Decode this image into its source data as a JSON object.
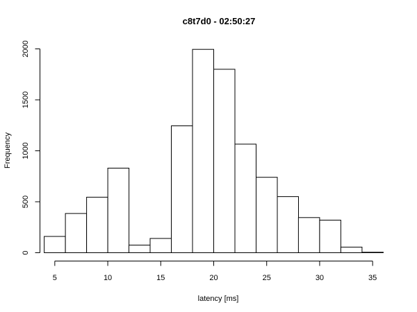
{
  "chart_data": {
    "type": "bar",
    "title": "c8t7d0 - 02:50:27",
    "xlabel": "latency [ms]",
    "ylabel": "Frequency",
    "bin_edges": [
      4,
      6,
      8,
      10,
      12,
      14,
      16,
      18,
      20,
      22,
      24,
      26,
      28,
      30,
      32,
      34,
      36
    ],
    "values": [
      160,
      385,
      545,
      830,
      75,
      140,
      1245,
      1995,
      1800,
      1065,
      740,
      550,
      345,
      320,
      55,
      5
    ],
    "xlim": [
      4,
      36
    ],
    "ylim": [
      0,
      2000
    ],
    "x_ticks": [
      5,
      10,
      15,
      20,
      25,
      30,
      35
    ],
    "y_ticks": [
      0,
      500,
      1000,
      1500,
      2000
    ],
    "x_tick_labels": [
      "5",
      "10",
      "15",
      "20",
      "25",
      "30",
      "35"
    ],
    "y_tick_labels": [
      "0",
      "500",
      "1000",
      "1500",
      "2000"
    ],
    "grid": false,
    "legend": false
  }
}
